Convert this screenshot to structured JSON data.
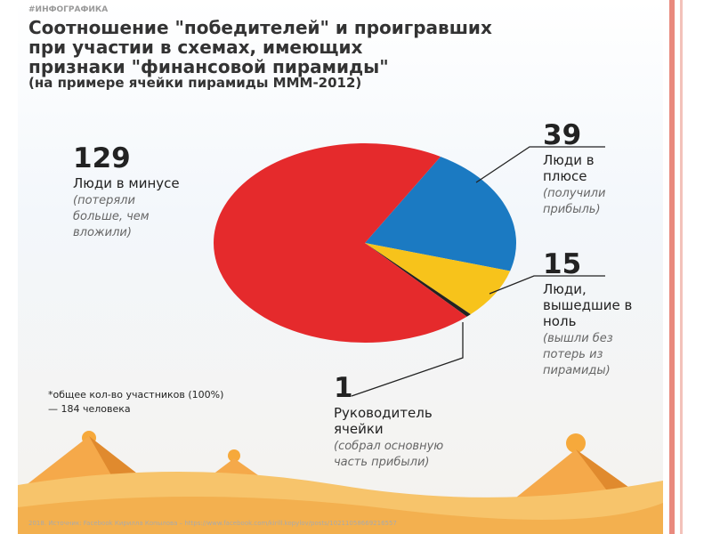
{
  "chart_data": {
    "type": "pie",
    "tag": "#ИНФОГРАФИКА",
    "title": [
      "Соотношение \"победителей\" и проигравших",
      "при участии в схемах, имеющих",
      "признаки \"финансовой пирамиды\""
    ],
    "subtitle": "(на примере ячейки пирамиды МММ-2012)",
    "categories": [
      "Люди в минусе",
      "Люди в плюсе",
      "Люди, вышедшие в ноль",
      "Руководитель ячейки"
    ],
    "notes": [
      "(потеряли больше, чем вложили)",
      "(получили прибыль)",
      "(вышли без потерь из пирамиды)",
      "(собрал основную часть прибыли)"
    ],
    "values": [
      129,
      39,
      15,
      1
    ],
    "colors": [
      "#e52a2c",
      "#1b7ac2",
      "#f7c31b",
      "#222222"
    ],
    "footnote": "*общее кол-во участников (100%) — 184 человека",
    "source": "2018. Источник: Facebook Кирилла Копылова – https://www.facebook.com/kirill.kopylov/posts/10211058669216557"
  }
}
